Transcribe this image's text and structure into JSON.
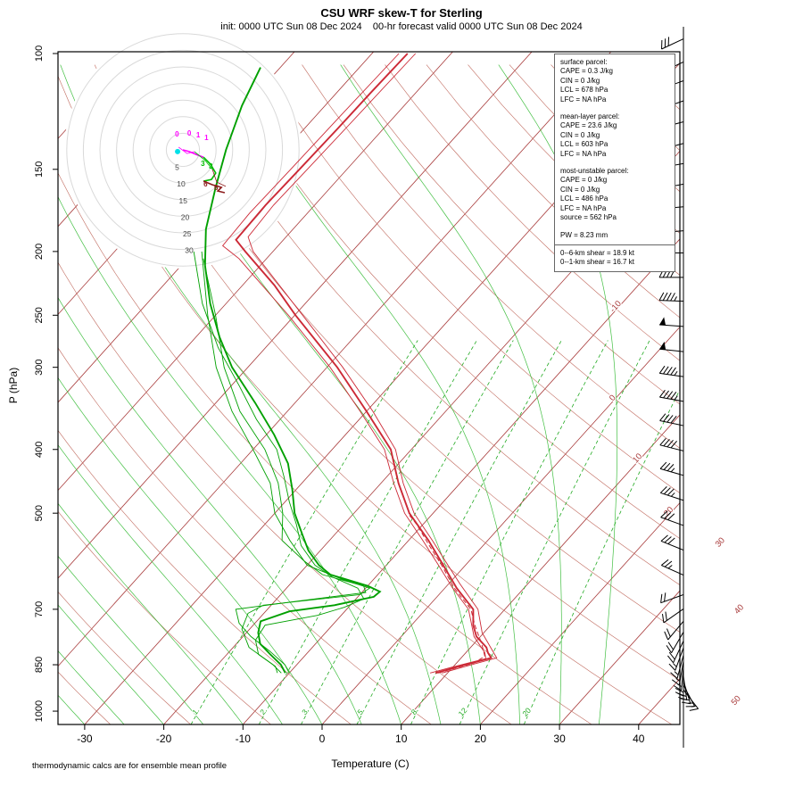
{
  "chart_data": {
    "type": "skewt",
    "title": "CSU WRF skew-T for Sterling",
    "subtitle": "init: 0000 UTC Sun 08 Dec 2024    00-hr forecast valid 0000 UTC Sun 08 Dec 2024",
    "xlabel": "Temperature (C)",
    "ylabel": "P (hPa)",
    "footnote": "thermodynamic calcs are for ensemble mean profile",
    "pressure_ticks": [
      100,
      150,
      200,
      250,
      300,
      400,
      500,
      700,
      850,
      1000
    ],
    "temp_ticks": [
      -30,
      -20,
      -10,
      0,
      10,
      20,
      30,
      40
    ],
    "pressure_range": [
      100,
      1048
    ],
    "colors": {
      "isotherm": "#a83a3a",
      "dry_adiabat": "#c06a5e",
      "moist_adiabat": "#2eb82e",
      "mixing": "#22aa22",
      "temp": "#cc2936",
      "dewpoint": "#00a000",
      "barb": "#000000",
      "ring": "#d9d9d9",
      "ring_label": "#444444",
      "hodo_0_1": "#ff00ff",
      "hodo_1_3": "#00bb00",
      "hodo_3_6": "#8b1a1a",
      "storm": "#00e0e8"
    },
    "isotherms": {
      "min": -110,
      "max": 50,
      "step": 10
    },
    "isotherm_labels": [
      {
        "t": -10,
        "p": 244
      },
      {
        "t": 0,
        "p": 336
      },
      {
        "t": 10,
        "p": 415
      },
      {
        "t": 20,
        "p": 500
      },
      {
        "t": 30,
        "p": 557
      },
      {
        "t": 40,
        "p": 704
      },
      {
        "t": 50,
        "p": 969
      }
    ],
    "dry_adiabats": {
      "min": -40,
      "max": 180,
      "step": 10
    },
    "moist_adiabats": {
      "min": -40,
      "max": 35,
      "step": 5
    },
    "mixing_ratios": [
      1,
      2,
      3,
      5,
      8,
      12,
      20
    ],
    "mixing_label_pressure": 1009,
    "sounding": {
      "temperature_mean": [
        [
          875,
          8.5
        ],
        [
          848,
          11.5
        ],
        [
          830,
          13.8
        ],
        [
          815,
          12.8
        ],
        [
          800,
          12.0
        ],
        [
          770,
          9.5
        ],
        [
          740,
          7.8
        ],
        [
          700,
          6.0
        ],
        [
          650,
          1.5
        ],
        [
          600,
          -2.8
        ],
        [
          550,
          -7.5
        ],
        [
          500,
          -13.0
        ],
        [
          450,
          -17.8
        ],
        [
          400,
          -22.6
        ],
        [
          350,
          -30.0
        ],
        [
          300,
          -38.7
        ],
        [
          250,
          -49.9
        ],
        [
          225,
          -56.0
        ],
        [
          200,
          -63.5
        ],
        [
          192,
          -66.0
        ],
        [
          170,
          -66.2
        ],
        [
          150,
          -66.0
        ],
        [
          130,
          -65.8
        ],
        [
          115,
          -65.7
        ],
        [
          100,
          -65.5
        ]
      ],
      "temperature_members": [
        [
          [
            875,
            9.3
          ],
          [
            848,
            12.3
          ],
          [
            830,
            14.5
          ],
          [
            810,
            13.2
          ],
          [
            760,
            9.8
          ],
          [
            700,
            6.6
          ],
          [
            640,
            1.4
          ],
          [
            600,
            -2.2
          ],
          [
            550,
            -7.0
          ],
          [
            500,
            -12.4
          ],
          [
            450,
            -17.2
          ],
          [
            400,
            -22.0
          ],
          [
            350,
            -29.2
          ],
          [
            300,
            -38.0
          ],
          [
            250,
            -49.0
          ],
          [
            200,
            -62.5
          ],
          [
            190,
            -64.8
          ],
          [
            170,
            -65.2
          ],
          [
            150,
            -65.0
          ],
          [
            130,
            -64.8
          ],
          [
            100,
            -64.5
          ]
        ],
        [
          [
            875,
            7.8
          ],
          [
            850,
            10.8
          ],
          [
            832,
            13.2
          ],
          [
            815,
            12.4
          ],
          [
            770,
            9.2
          ],
          [
            700,
            5.4
          ],
          [
            650,
            1.0
          ],
          [
            600,
            -3.4
          ],
          [
            550,
            -8.2
          ],
          [
            500,
            -13.6
          ],
          [
            450,
            -18.4
          ],
          [
            400,
            -23.4
          ],
          [
            350,
            -30.8
          ],
          [
            300,
            -39.6
          ],
          [
            250,
            -50.8
          ],
          [
            205,
            -63.5
          ],
          [
            196,
            -67.0
          ],
          [
            175,
            -67.3
          ],
          [
            150,
            -67.1
          ],
          [
            125,
            -66.9
          ],
          [
            100,
            -66.6
          ]
        ]
      ],
      "temperature_dashed": [
        [
          875,
          8.8
        ],
        [
          845,
          12.2
        ],
        [
          825,
          12.8
        ],
        [
          790,
          11.0
        ],
        [
          740,
          8.0
        ],
        [
          700,
          5.7
        ],
        [
          650,
          1.2
        ],
        [
          600,
          -3.0
        ],
        [
          560,
          -6.8
        ],
        [
          520,
          -10.8
        ],
        [
          500,
          -13.2
        ]
      ],
      "dewpoint_mean": [
        [
          875,
          -10.5
        ],
        [
          850,
          -12.0
        ],
        [
          820,
          -14.5
        ],
        [
          790,
          -17.0
        ],
        [
          760,
          -18.5
        ],
        [
          730,
          -19.5
        ],
        [
          705,
          -17.0
        ],
        [
          690,
          -12.0
        ],
        [
          670,
          -8.0
        ],
        [
          658,
          -7.8
        ],
        [
          645,
          -10.0
        ],
        [
          620,
          -16.0
        ],
        [
          600,
          -18.5
        ],
        [
          570,
          -21.5
        ],
        [
          540,
          -24.0
        ],
        [
          500,
          -27.5
        ],
        [
          460,
          -30.5
        ],
        [
          420,
          -34.0
        ],
        [
          380,
          -39.0
        ],
        [
          340,
          -45.0
        ],
        [
          300,
          -52.0
        ],
        [
          270,
          -57.0
        ],
        [
          240,
          -62.0
        ],
        [
          210,
          -67.0
        ],
        [
          185,
          -71.0
        ],
        [
          160,
          -74.5
        ],
        [
          140,
          -77.5
        ],
        [
          120,
          -80.5
        ],
        [
          105,
          -82.5
        ]
      ],
      "dewpoint_members": [
        [
          [
            875,
            -11.0
          ],
          [
            850,
            -13.0
          ],
          [
            800,
            -18.0
          ],
          [
            750,
            -21.0
          ],
          [
            710,
            -22.0
          ],
          [
            690,
            -21.0
          ],
          [
            665,
            -10.0
          ],
          [
            650,
            -9.5
          ],
          [
            630,
            -14.0
          ],
          [
            600,
            -20.0
          ],
          [
            550,
            -25.0
          ],
          [
            500,
            -30.0
          ],
          [
            450,
            -34.0
          ],
          [
            400,
            -40.0
          ],
          [
            350,
            -47.0
          ],
          [
            300,
            -54.0
          ],
          [
            250,
            -61.0
          ],
          [
            200,
            -69.0
          ]
        ],
        [
          [
            875,
            -10.0
          ],
          [
            850,
            -11.5
          ],
          [
            810,
            -15.0
          ],
          [
            770,
            -19.0
          ],
          [
            735,
            -22.0
          ],
          [
            700,
            -24.0
          ],
          [
            680,
            -17.0
          ],
          [
            660,
            -9.5
          ],
          [
            645,
            -10.5
          ],
          [
            620,
            -17.0
          ],
          [
            590,
            -21.0
          ],
          [
            550,
            -26.0
          ],
          [
            500,
            -29.0
          ],
          [
            450,
            -33.0
          ],
          [
            400,
            -38.5
          ],
          [
            350,
            -46.0
          ],
          [
            300,
            -53.0
          ],
          [
            250,
            -60.0
          ],
          [
            205,
            -68.0
          ]
        ],
        [
          [
            875,
            -11.5
          ],
          [
            855,
            -12.5
          ],
          [
            820,
            -16.0
          ],
          [
            780,
            -18.0
          ],
          [
            740,
            -18.5
          ],
          [
            715,
            -13.0
          ],
          [
            695,
            -10.5
          ],
          [
            675,
            -9.0
          ],
          [
            650,
            -11.0
          ],
          [
            625,
            -15.5
          ],
          [
            600,
            -19.0
          ],
          [
            560,
            -23.0
          ],
          [
            520,
            -26.0
          ],
          [
            480,
            -29.5
          ],
          [
            440,
            -33.0
          ],
          [
            400,
            -37.0
          ],
          [
            360,
            -43.0
          ],
          [
            320,
            -49.0
          ],
          [
            280,
            -56.0
          ],
          [
            240,
            -63.0
          ],
          [
            200,
            -70.0
          ]
        ]
      ]
    },
    "hodograph": {
      "rings_kt": [
        5,
        10,
        15,
        20,
        25,
        30,
        35
      ],
      "ring_label_values": [
        5,
        10,
        15,
        20,
        25,
        30
      ],
      "storm_motion_kt": [
        -1.6,
        -0.5
      ],
      "segments": [
        {
          "layer": "0-1 km",
          "color_key": "hodo_0_1",
          "width": 1.6,
          "pts": [
            [
              0,
              0
            ],
            [
              1.9,
              -0.5
            ],
            [
              4.6,
              -1.6
            ],
            [
              6.2,
              -2.2
            ]
          ]
        },
        {
          "layer": "1-3 km",
          "color_key": "hodo_1_3",
          "width": 1.6,
          "pts": [
            [
              6.2,
              -2.2
            ],
            [
              8.3,
              -4.3
            ],
            [
              9.9,
              -7.0
            ],
            [
              8.6,
              -8.9
            ],
            [
              6.2,
              -9.4
            ]
          ]
        },
        {
          "layer": "3-6 km",
          "color_key": "hodo_3_6",
          "width": 1.6,
          "pts": [
            [
              6.2,
              -9.4
            ],
            [
              8.9,
              -10.5
            ],
            [
              11.6,
              -11.3
            ],
            [
              10.5,
              -12.4
            ],
            [
              12.6,
              -12.9
            ]
          ]
        },
        {
          "layer": "0-1 km member",
          "color_key": "hodo_0_1",
          "width": 0.8,
          "pts": [
            [
              -1.3,
              0.8
            ],
            [
              1.3,
              -1.1
            ],
            [
              3.5,
              -0.5
            ]
          ]
        },
        {
          "layer": "1-3 km member",
          "color_key": "hodo_1_3",
          "width": 0.8,
          "pts": [
            [
              3.5,
              -0.5
            ],
            [
              6.7,
              -3.2
            ],
            [
              8.9,
              -5.9
            ]
          ]
        },
        {
          "layer": "3-6 km member",
          "color_key": "hodo_3_6",
          "width": 0.8,
          "pts": [
            [
              8.9,
              -5.9
            ],
            [
              10.2,
              -9.7
            ],
            [
              12.9,
              -11.0
            ]
          ]
        }
      ],
      "height_labels": [
        {
          "text": "0",
          "color_key": "hodo_0_1",
          "pos": [
            -2.4,
            4.0
          ]
        },
        {
          "text": "0",
          "color_key": "hodo_0_1",
          "pos": [
            1.3,
            4.3
          ]
        },
        {
          "text": "1",
          "color_key": "hodo_0_1",
          "pos": [
            4.0,
            3.8
          ]
        },
        {
          "text": "1",
          "color_key": "hodo_0_1",
          "pos": [
            6.5,
            2.9
          ]
        },
        {
          "text": "3",
          "color_key": "hodo_1_3",
          "pos": [
            5.4,
            -4.8
          ]
        },
        {
          "text": "3",
          "color_key": "hodo_1_3",
          "pos": [
            7.8,
            -5.6
          ]
        },
        {
          "text": "6",
          "color_key": "hodo_3_6",
          "pos": [
            6.2,
            -11.0
          ]
        },
        {
          "text": "6",
          "color_key": "hodo_3_6",
          "pos": [
            9.4,
            -12.1
          ]
        }
      ]
    },
    "wind_barbs": [
      [
        95,
        245,
        30
      ],
      [
        103,
        245,
        30
      ],
      [
        110,
        250,
        25
      ],
      [
        118,
        250,
        25
      ],
      [
        127,
        255,
        25
      ],
      [
        137,
        255,
        20
      ],
      [
        147,
        260,
        25
      ],
      [
        158,
        260,
        30
      ],
      [
        171,
        265,
        30
      ],
      [
        186,
        265,
        35
      ],
      [
        201,
        270,
        35
      ],
      [
        219,
        270,
        40
      ],
      [
        238,
        272,
        45
      ],
      [
        260,
        274,
        50
      ],
      [
        284,
        276,
        50
      ],
      [
        310,
        278,
        45
      ],
      [
        338,
        280,
        45
      ],
      [
        368,
        282,
        40
      ],
      [
        402,
        284,
        40
      ],
      [
        438,
        286,
        35
      ],
      [
        478,
        288,
        35
      ],
      [
        522,
        290,
        30
      ],
      [
        569,
        292,
        30
      ],
      [
        621,
        294,
        25
      ],
      [
        665,
        250,
        20
      ],
      [
        699,
        235,
        20
      ],
      [
        730,
        220,
        20
      ],
      [
        758,
        210,
        20
      ],
      [
        782,
        205,
        18
      ],
      [
        801,
        200,
        15
      ],
      [
        822,
        195,
        15
      ],
      [
        840,
        190,
        15
      ],
      [
        855,
        185,
        15
      ],
      [
        872,
        180,
        18
      ],
      [
        885,
        172,
        20
      ],
      [
        899,
        163,
        20
      ],
      [
        913,
        152,
        15
      ],
      [
        928,
        142,
        15
      ]
    ],
    "info": {
      "parcels": [
        {
          "title": "surface parcel:",
          "lines": [
            "CAPE = 0.3 J/kg",
            "CIN = 0 J/kg",
            "LCL = 678 hPa",
            "LFC = NA hPa"
          ]
        },
        {
          "title": "mean-layer parcel:",
          "lines": [
            "CAPE = 23.6 J/kg",
            "CIN = 0 J/kg",
            "LCL = 603 hPa",
            "LFC = NA hPa"
          ]
        },
        {
          "title": "most-unstable parcel:",
          "lines": [
            "CAPE = 0 J/kg",
            "CIN = 0 J/kg",
            "LCL = 486 hPa",
            "LFC = NA hPa",
            "source = 562 hPa"
          ]
        }
      ],
      "pw": "PW =  8.23 mm",
      "shear": [
        "0--6-km shear = 18.9 kt",
        "0--1-km shear = 16.7 kt"
      ]
    }
  }
}
